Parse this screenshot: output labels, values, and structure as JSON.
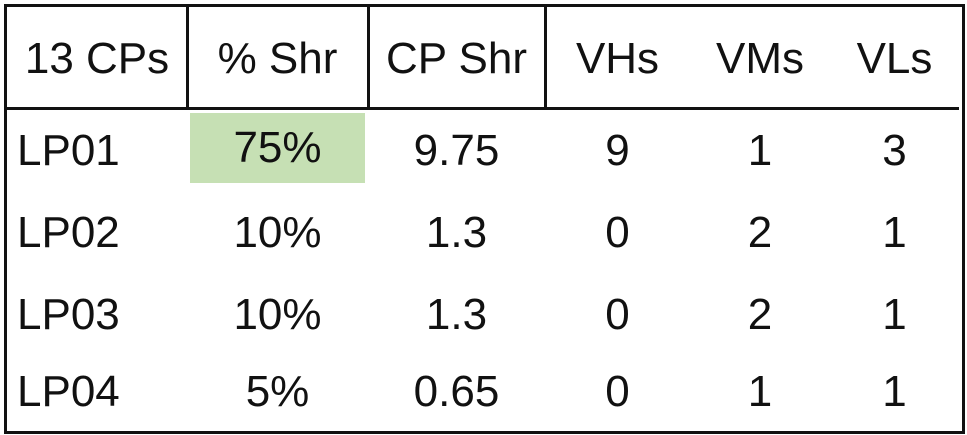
{
  "table": {
    "header": [
      "13 CPs",
      "% Shr",
      "CP Shr",
      "VHs",
      "VMs",
      "VLs"
    ],
    "rows": [
      [
        "LP01",
        "75%",
        "9.75",
        "9",
        "1",
        "3"
      ],
      [
        "LP02",
        "10%",
        "1.3",
        "0",
        "2",
        "1"
      ],
      [
        "LP03",
        "10%",
        "1.3",
        "0",
        "2",
        "1"
      ],
      [
        "LP04",
        "5%",
        "0.65",
        "0",
        "1",
        "1"
      ]
    ]
  }
}
